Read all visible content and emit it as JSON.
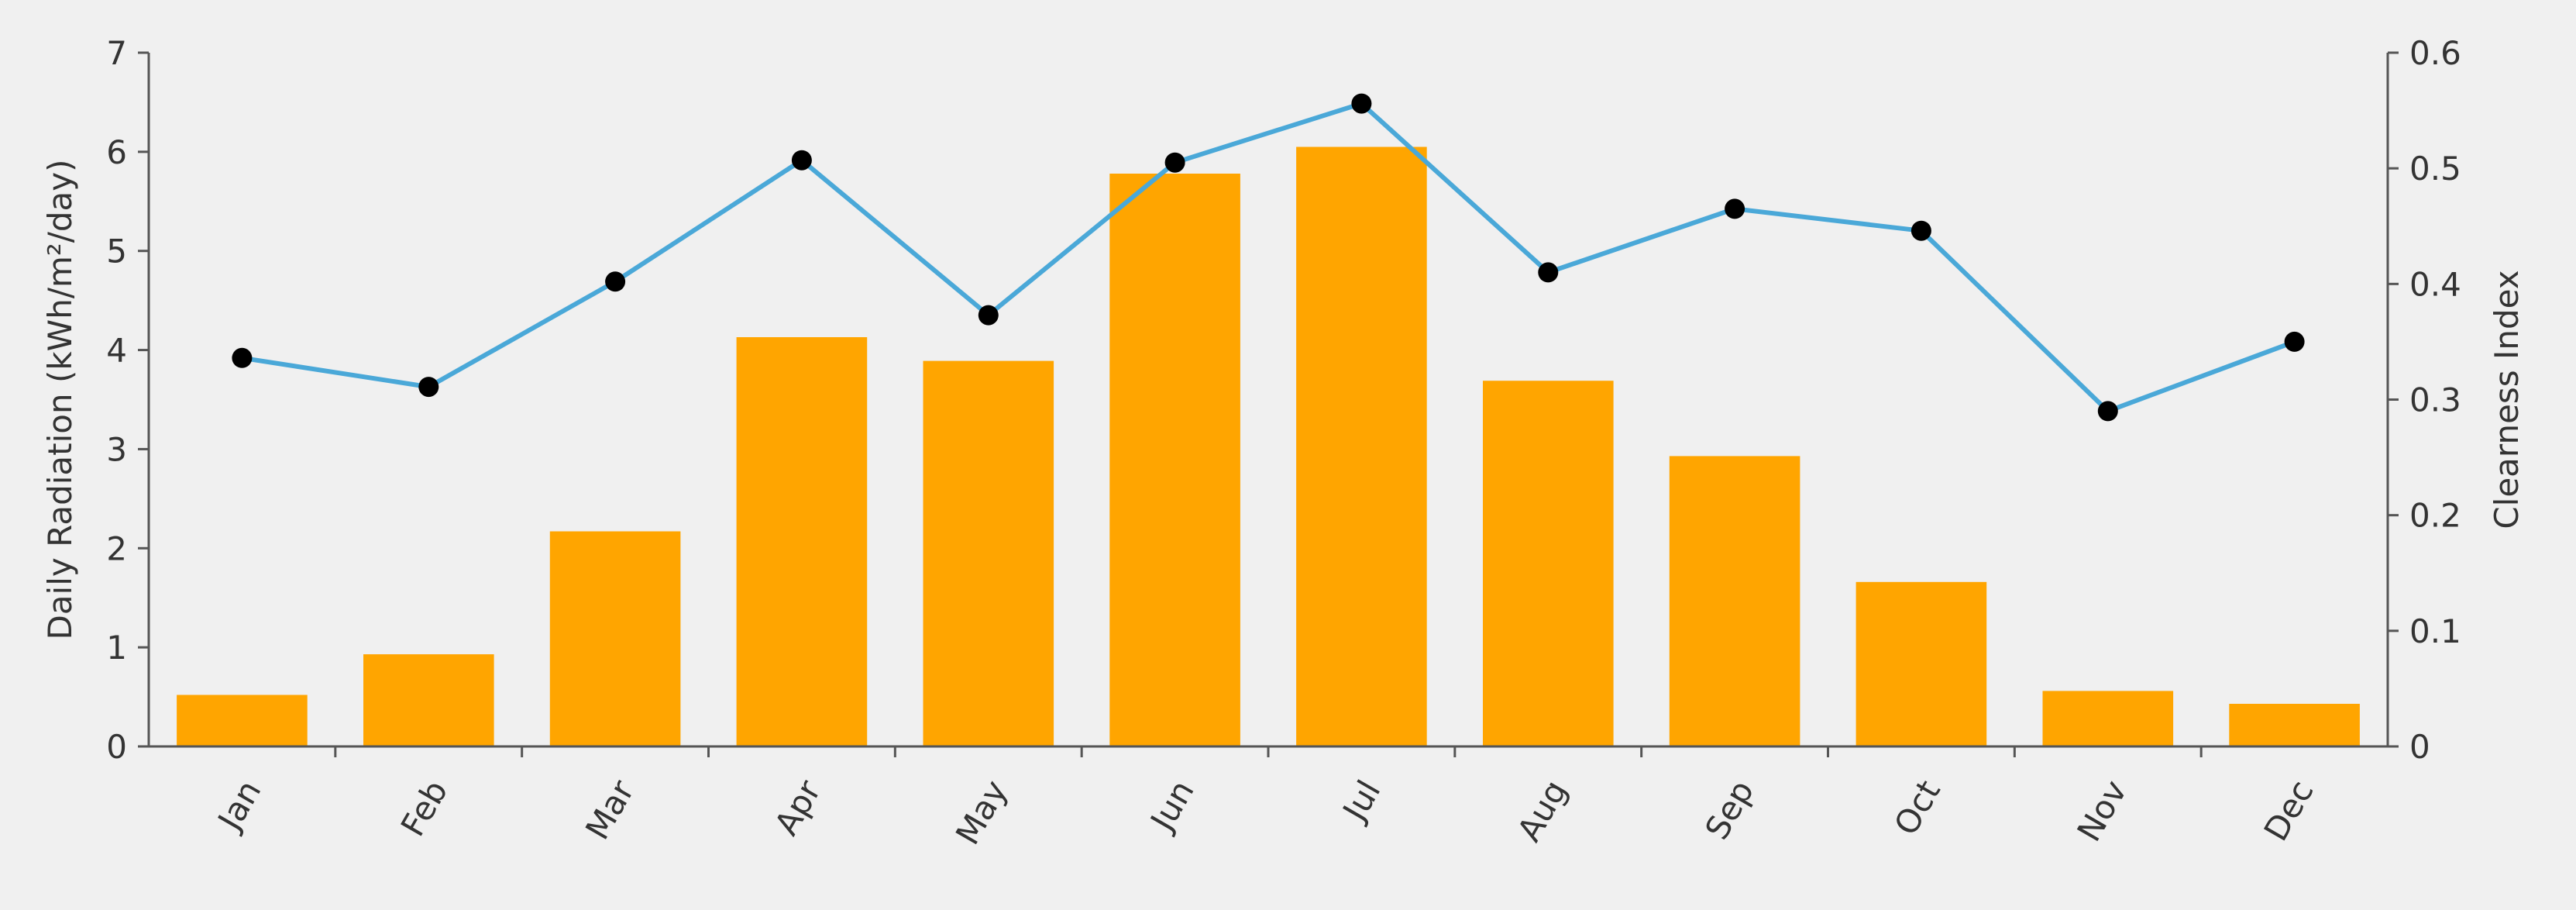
{
  "chart_data": {
    "type": "bar",
    "categories": [
      "Jan",
      "Feb",
      "Mar",
      "Apr",
      "May",
      "Jun",
      "Jul",
      "Aug",
      "Sep",
      "Oct",
      "Nov",
      "Dec"
    ],
    "series": [
      {
        "type": "bar",
        "axis": "left",
        "values": [
          0.52,
          0.93,
          2.17,
          4.13,
          3.89,
          5.78,
          6.05,
          3.69,
          2.93,
          1.66,
          0.56,
          0.43
        ],
        "color": "#ffa500"
      },
      {
        "type": "line",
        "axis": "right",
        "values": [
          0.336,
          0.311,
          0.402,
          0.507,
          0.373,
          0.505,
          0.556,
          0.41,
          0.465,
          0.446,
          0.29,
          0.35
        ],
        "color": "#4aa8d8",
        "marker_color": "#000000"
      }
    ],
    "title": "",
    "xlabel": "",
    "ylabel": "Daily Radiation (kWh/m²/day)",
    "y2label": "Clearness Index",
    "ylim": [
      0,
      7
    ],
    "y2lim": [
      0,
      0.6
    ],
    "yticks": [
      "0",
      "1",
      "2",
      "3",
      "4",
      "5",
      "6",
      "7"
    ],
    "y2ticks": [
      "0",
      "0.1",
      "0.2",
      "0.3",
      "0.4",
      "0.5",
      "0.6"
    ],
    "grid": false,
    "legend": "none"
  }
}
